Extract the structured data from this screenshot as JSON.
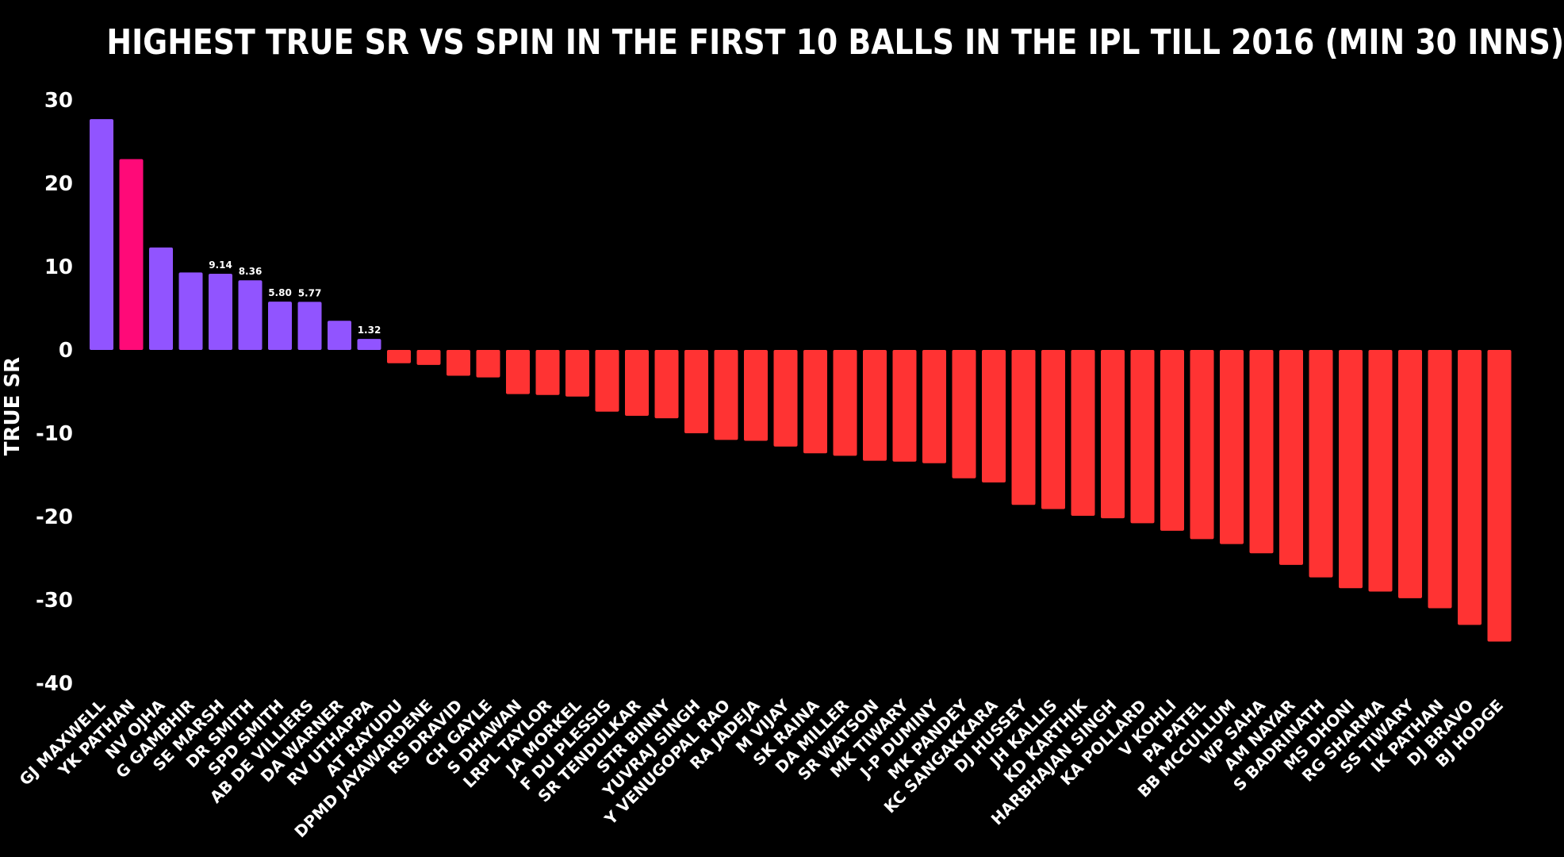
{
  "chart_data": {
    "type": "bar",
    "title": "HIGHEST TRUE SR VS SPIN IN THE FIRST 10 BALLS IN THE IPL TILL 2016 (MIN 30 INNS)",
    "ylabel": "TRUE SR",
    "xlabel": "",
    "ylim": [
      -40,
      30
    ],
    "yticks": [
      30,
      20,
      10,
      0,
      -10,
      -20,
      -30,
      -40
    ],
    "grid": false,
    "legend": "none",
    "colors": {
      "positive": "#9154FF",
      "highlight": "#FF0A78",
      "negative": "#FF3333",
      "background": "#000000",
      "text": "#FFFFFF"
    },
    "highlight_category": "YK PATHAN",
    "categories": [
      "GJ MAXWELL",
      "YK PATHAN",
      "NV OJHA",
      "G GAMBHIR",
      "SE MARSH",
      "DR SMITH",
      "SPD SMITH",
      "AB DE VILLIERS",
      "DA WARNER",
      "RV UTHAPPA",
      "AT RAYUDU",
      "DPMD JAYAWARDENE",
      "RS DRAVID",
      "CH GAYLE",
      "S DHAWAN",
      "LRPL TAYLOR",
      "JA MORKEL",
      "F DU PLESSIS",
      "SR TENDULKAR",
      "STR BINNY",
      "YUVRAJ SINGH",
      "Y VENUGOPAL RAO",
      "RA JADEJA",
      "M VIJAY",
      "SK RAINA",
      "DA MILLER",
      "SR WATSON",
      "MK TIWARY",
      "J-P DUMINY",
      "MK PANDEY",
      "KC SANGAKKARA",
      "DJ HUSSEY",
      "JH KALLIS",
      "KD KARTHIK",
      "HARBHAJAN SINGH",
      "KA POLLARD",
      "V KOHLI",
      "PA PATEL",
      "BB MCCULLUM",
      "WP SAHA",
      "AM NAYAR",
      "S BADRINATH",
      "MS DHONI",
      "RG SHARMA",
      "SS TIWARY",
      "IK PATHAN",
      "DJ BRAVO",
      "BJ HODGE"
    ],
    "values": [
      27.7,
      22.9,
      12.3,
      9.3,
      9.14,
      8.36,
      5.8,
      5.77,
      3.5,
      1.32,
      -1.6,
      -1.8,
      -3.1,
      -3.3,
      -5.3,
      -5.4,
      -5.6,
      -7.4,
      -7.9,
      -8.2,
      -10.0,
      -10.8,
      -10.9,
      -11.6,
      -12.4,
      -12.7,
      -13.3,
      -13.4,
      -13.6,
      -15.4,
      -15.9,
      -18.6,
      -19.1,
      -19.9,
      -20.2,
      -20.8,
      -21.7,
      -22.7,
      -23.3,
      -24.4,
      -25.8,
      -27.3,
      -28.6,
      -29.0,
      -29.8,
      -31.0,
      -33.0,
      -35.0
    ],
    "data_labels": {
      "SE MARSH": "9.14",
      "DR SMITH": "8.36",
      "SPD SMITH": "5.80",
      "AB DE VILLIERS": "5.77",
      "RV UTHAPPA": "1.32"
    }
  }
}
